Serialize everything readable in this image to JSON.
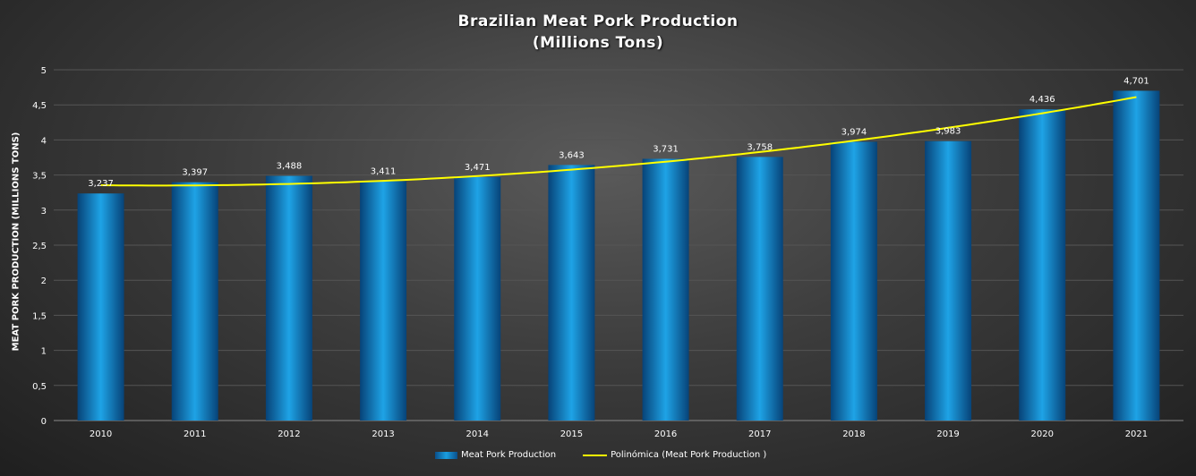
{
  "chart_data": {
    "type": "bar",
    "title": "Brazilian  Meat  Pork  Production",
    "subtitle": "(Millions  Tons)",
    "xlabel": "",
    "ylabel": "MEAT PORK PRODUCTION (MILLIONS TONS)",
    "categories": [
      "2010",
      "2011",
      "2012",
      "2013",
      "2014",
      "2015",
      "2016",
      "2017",
      "2018",
      "2019",
      "2020",
      "2021"
    ],
    "series": [
      {
        "name": "Meat Pork Production",
        "values": [
          3.237,
          3.397,
          3.488,
          3.411,
          3.471,
          3.643,
          3.731,
          3.758,
          3.974,
          3.983,
          4.436,
          4.701
        ]
      }
    ],
    "data_labels": [
      "3,237",
      "3,397",
      "3,488",
      "3,411",
      "3,471",
      "3,643",
      "3,731",
      "3,758",
      "3,974",
      "3,983",
      "4,436",
      "4,701"
    ],
    "trendline": {
      "name": "Polinómica (Meat Pork Production )",
      "type": "polynomial",
      "order": 2,
      "color": "#ffff00"
    },
    "ylim": [
      0,
      5
    ],
    "yticks": [
      0,
      0.5,
      1,
      1.5,
      2,
      2.5,
      3,
      3.5,
      4,
      4.5,
      5
    ],
    "ytick_labels": [
      "0",
      "0,5",
      "1",
      "1,5",
      "2",
      "2,5",
      "3",
      "3,5",
      "4",
      "4,5",
      "5"
    ],
    "grid": true,
    "legend_position": "bottom",
    "bar_color": "#1a9ee0"
  }
}
